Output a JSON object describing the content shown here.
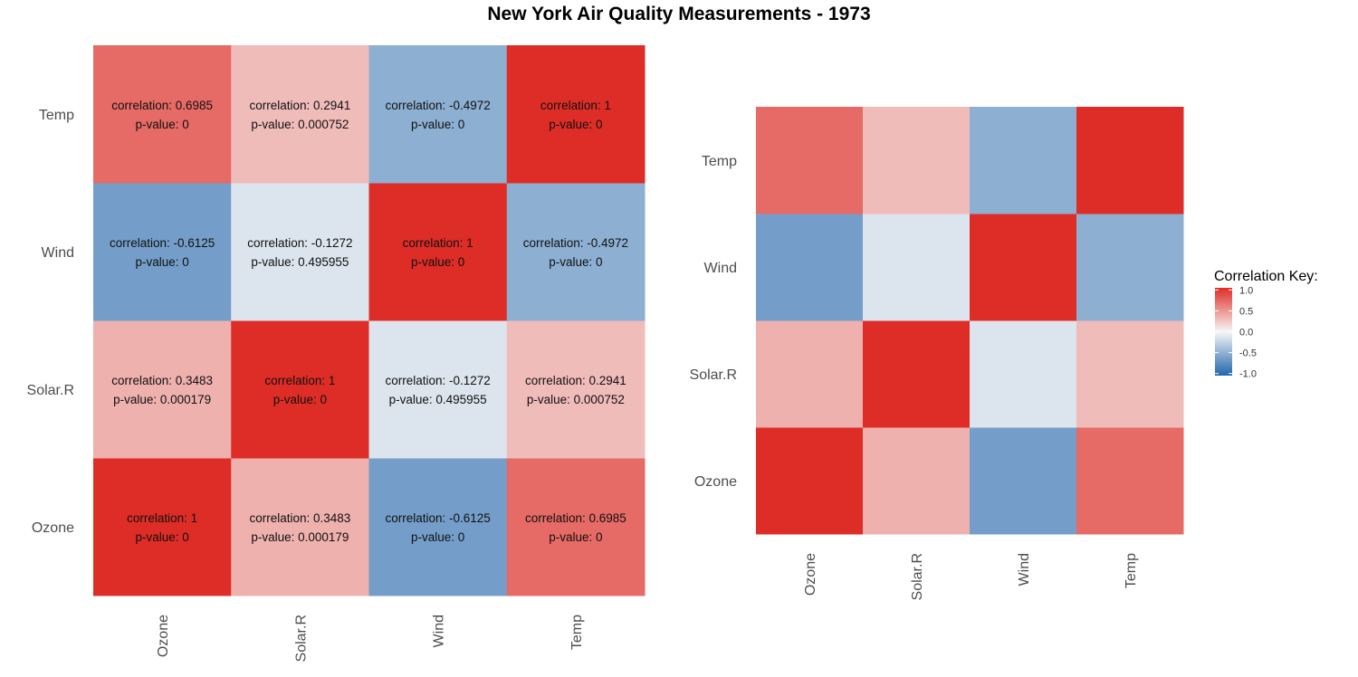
{
  "title": "New York Air Quality Measurements - 1973",
  "chart_data": [
    {
      "type": "heatmap",
      "variables": [
        "Ozone",
        "Solar.R",
        "Wind",
        "Temp"
      ],
      "matrix": [
        [
          1,
          0.3483,
          -0.6125,
          0.6985
        ],
        [
          0.3483,
          1,
          -0.1272,
          0.2941
        ],
        [
          -0.6125,
          -0.1272,
          1,
          -0.4972
        ],
        [
          0.6985,
          0.2941,
          -0.4972,
          1
        ]
      ],
      "correlation_labels": [
        [
          "1",
          "0.3483",
          "-0.6125",
          "0.6985"
        ],
        [
          "0.3483",
          "1",
          "-0.1272",
          "0.2941"
        ],
        [
          "-0.6125",
          "-0.1272",
          "1",
          "-0.4972"
        ],
        [
          "0.6985",
          "0.2941",
          "-0.4972",
          "1"
        ]
      ],
      "pvalues": [
        [
          "0",
          "0.000179",
          "0",
          "0"
        ],
        [
          "0.000179",
          "0",
          "0.495955",
          "0.000752"
        ],
        [
          "0",
          "0.495955",
          "0",
          "0"
        ],
        [
          "0",
          "0.000752",
          "0",
          "0"
        ]
      ],
      "cell_label_prefix": "correlation: ",
      "pvalue_prefix": "p-value:  ",
      "annotated": true
    },
    {
      "type": "heatmap",
      "variables": [
        "Ozone",
        "Solar.R",
        "Wind",
        "Temp"
      ],
      "matrix": [
        [
          1,
          0.3483,
          -0.6125,
          0.6985
        ],
        [
          0.3483,
          1,
          -0.1272,
          0.2941
        ],
        [
          -0.6125,
          -0.1272,
          1,
          -0.4972
        ],
        [
          0.6985,
          0.2941,
          -0.4972,
          1
        ]
      ],
      "annotated": false
    }
  ],
  "legend": {
    "title": "Correlation Key:",
    "ticks": [
      "1.0",
      "0.5",
      "0.0",
      "-0.5",
      "-1.0"
    ],
    "tick_values": [
      1,
      0.5,
      0,
      -0.5,
      -1
    ],
    "colors": {
      "low": "#2166ac",
      "mid": "#f7f7f7",
      "high": "#de2d26"
    }
  }
}
